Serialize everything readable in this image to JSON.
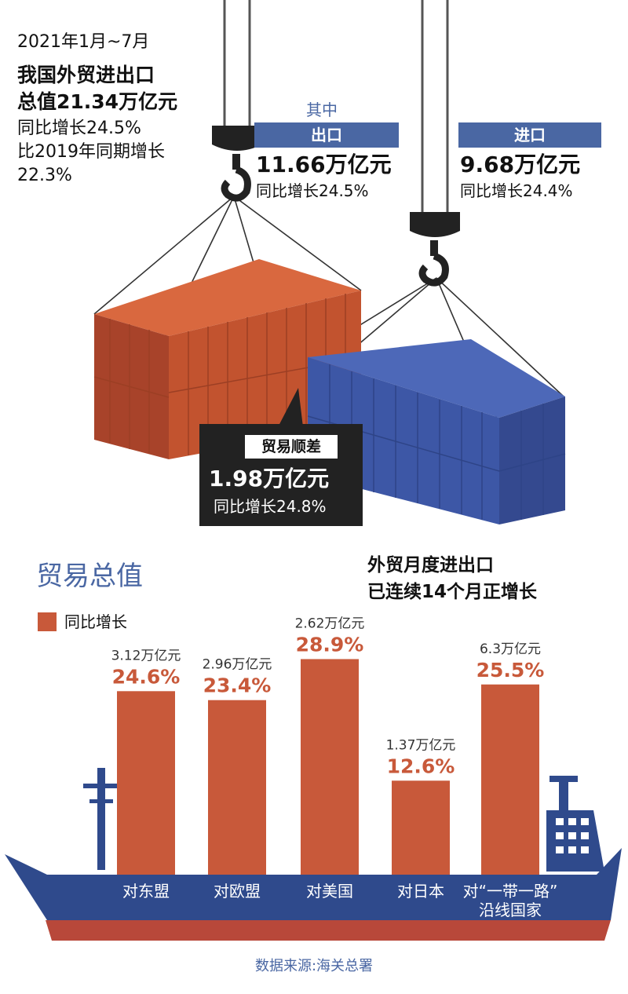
{
  "headline": {
    "period": "2021年1月~7月",
    "line1": "我国外贸进出口",
    "line2": "总值21.34万亿元",
    "line3": "同比增长24.5%",
    "line4": "比2019年同期增长",
    "line5": "22.3%"
  },
  "breakdown_label": "其中",
  "export": {
    "tag": "出口",
    "value": "11.66万亿元",
    "growth": "同比增长24.5%"
  },
  "import": {
    "tag": "进口",
    "value": "9.68万亿元",
    "growth": "同比增长24.4%"
  },
  "surplus": {
    "tag": "贸易顺差",
    "value": "1.98万亿元",
    "growth": "同比增长24.8%"
  },
  "section_title": "贸易总值",
  "legend_label": "同比增长",
  "note": {
    "line1": "外贸月度进出口",
    "line2": "已连续14个月正增长"
  },
  "source": "数据来源:海关总署",
  "colors": {
    "bar": "#c8593a",
    "accent_blue": "#4a67a3",
    "ship": "#2f4a8c",
    "hull_red": "#b8483a",
    "container_orange": "#c85a35",
    "container_blue": "#3d57a6"
  },
  "chart_data": {
    "type": "bar",
    "categories": [
      "对东盟",
      "对欧盟",
      "对美国",
      "对日本",
      "对“一带一路”沿线国家"
    ],
    "category_lines": [
      [
        "对东盟"
      ],
      [
        "对欧盟"
      ],
      [
        "对美国"
      ],
      [
        "对日本"
      ],
      [
        "对“一带一路”",
        "沿线国家"
      ]
    ],
    "values": [
      24.6,
      23.4,
      28.9,
      12.6,
      25.5
    ],
    "value_labels": [
      "24.6%",
      "23.4%",
      "28.9%",
      "12.6%",
      "25.5%"
    ],
    "totals": [
      "3.12万亿元",
      "2.96万亿元",
      "2.62万亿元",
      "1.37万亿元",
      "6.3万亿元"
    ],
    "ylim": [
      0,
      30
    ],
    "legend": "同比增长"
  }
}
